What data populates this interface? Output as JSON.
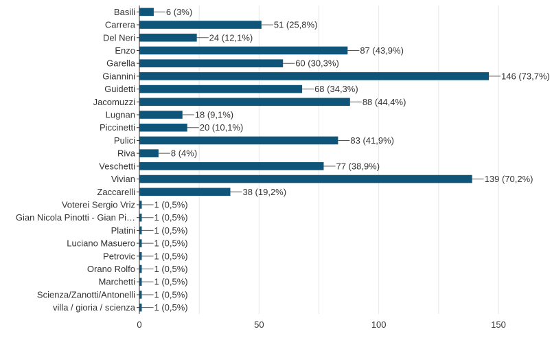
{
  "chart_data": {
    "type": "bar",
    "orientation": "horizontal",
    "categories": [
      "Basili",
      "Carrera",
      "Del Neri",
      "Enzo",
      "Garella",
      "Giannini",
      "Guidetti",
      "Jacomuzzi",
      "Lugnan",
      "Piccinetti",
      "Pulici",
      "Riva",
      "Veschetti",
      "Vivian",
      "Zaccarelli",
      "Voterei Sergio Vriz",
      "Gian Nicola Pinotti - Gian Pi…",
      "Platini",
      "Luciano Masuero",
      "Petrovic",
      "Orano Rolfo",
      "Marchetti",
      "Scienza/Zanotti/Antonelli",
      "villa / gioria / scienza"
    ],
    "values": [
      6,
      51,
      24,
      87,
      60,
      146,
      68,
      88,
      18,
      20,
      83,
      8,
      77,
      139,
      38,
      1,
      1,
      1,
      1,
      1,
      1,
      1,
      1,
      1
    ],
    "data_labels": [
      "6 (3%)",
      "51 (25,8%)",
      "24 (12,1%)",
      "87 (43,9%)",
      "60 (30,3%)",
      "146 (73,7%)",
      "68 (34,3%)",
      "88 (44,4%)",
      "18 (9,1%)",
      "20 (10,1%)",
      "83 (41,9%)",
      "8 (4%)",
      "77 (38,9%)",
      "139 (70,2%)",
      "38 (19,2%)",
      "1 (0,5%)",
      "1 (0,5%)",
      "1 (0,5%)",
      "1 (0,5%)",
      "1 (0,5%)",
      "1 (0,5%)",
      "1 (0,5%)",
      "1 (0,5%)",
      "1 (0,5%)"
    ],
    "x_ticks": [
      "0",
      "50",
      "100",
      "150"
    ],
    "xlim": [
      0,
      150
    ],
    "title": "",
    "xlabel": "",
    "ylabel": "",
    "bar_color": "#0f5479",
    "grid": true,
    "legend": false
  }
}
